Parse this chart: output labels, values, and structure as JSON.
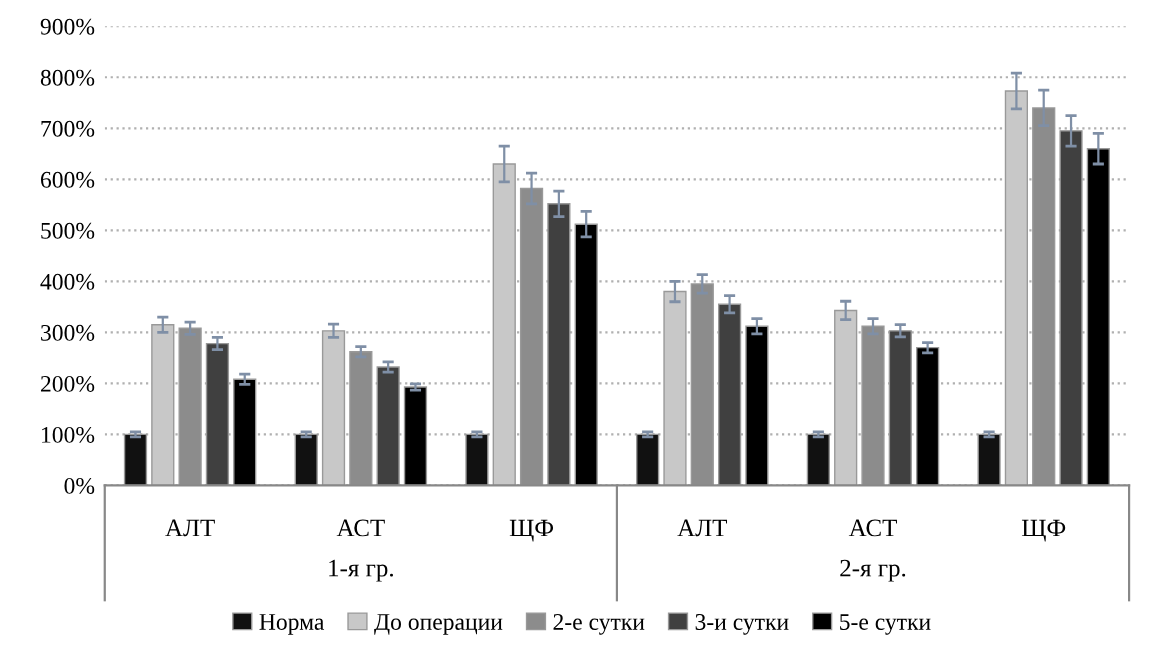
{
  "chart_data": {
    "type": "bar",
    "categories": [
      "АЛТ",
      "АСТ",
      "ЩФ",
      "АЛТ",
      "АСТ",
      "ЩФ"
    ],
    "annotations": [
      "1-я гр.",
      "2-я гр."
    ],
    "series": [
      {
        "name": "Норма",
        "color": "#111111",
        "values": [
          100,
          100,
          100,
          100,
          100,
          100
        ],
        "errors": [
          5,
          5,
          5,
          5,
          5,
          5
        ]
      },
      {
        "name": "До операции",
        "color": "#c8c8c8",
        "values": [
          315,
          303,
          630,
          380,
          343,
          773
        ],
        "errors": [
          15,
          13,
          35,
          20,
          18,
          35
        ]
      },
      {
        "name": "2-е сутки",
        "color": "#8c8c8c",
        "values": [
          308,
          262,
          582,
          395,
          312,
          740
        ],
        "errors": [
          12,
          10,
          30,
          18,
          15,
          35
        ]
      },
      {
        "name": "3-и сутки",
        "color": "#404040",
        "values": [
          278,
          232,
          552,
          355,
          303,
          695
        ],
        "errors": [
          12,
          10,
          25,
          17,
          12,
          30
        ]
      },
      {
        "name": "5-е сутки",
        "color": "#000000",
        "values": [
          208,
          193,
          512,
          312,
          270,
          660
        ],
        "errors": [
          10,
          6,
          25,
          15,
          10,
          30
        ]
      }
    ],
    "ylim": [
      0,
      900
    ],
    "yticks": [
      {
        "value": 0,
        "label": "0%"
      },
      {
        "value": 100,
        "label": "100%"
      },
      {
        "value": 200,
        "label": "200%"
      },
      {
        "value": 300,
        "label": "300%"
      },
      {
        "value": 400,
        "label": "400%"
      },
      {
        "value": 500,
        "label": "500%"
      },
      {
        "value": 600,
        "label": "600%"
      },
      {
        "value": 700,
        "label": "700%"
      },
      {
        "value": 800,
        "label": "800%"
      },
      {
        "value": 900,
        "label": "900%"
      }
    ],
    "grid": "y",
    "legend": "bottom"
  }
}
